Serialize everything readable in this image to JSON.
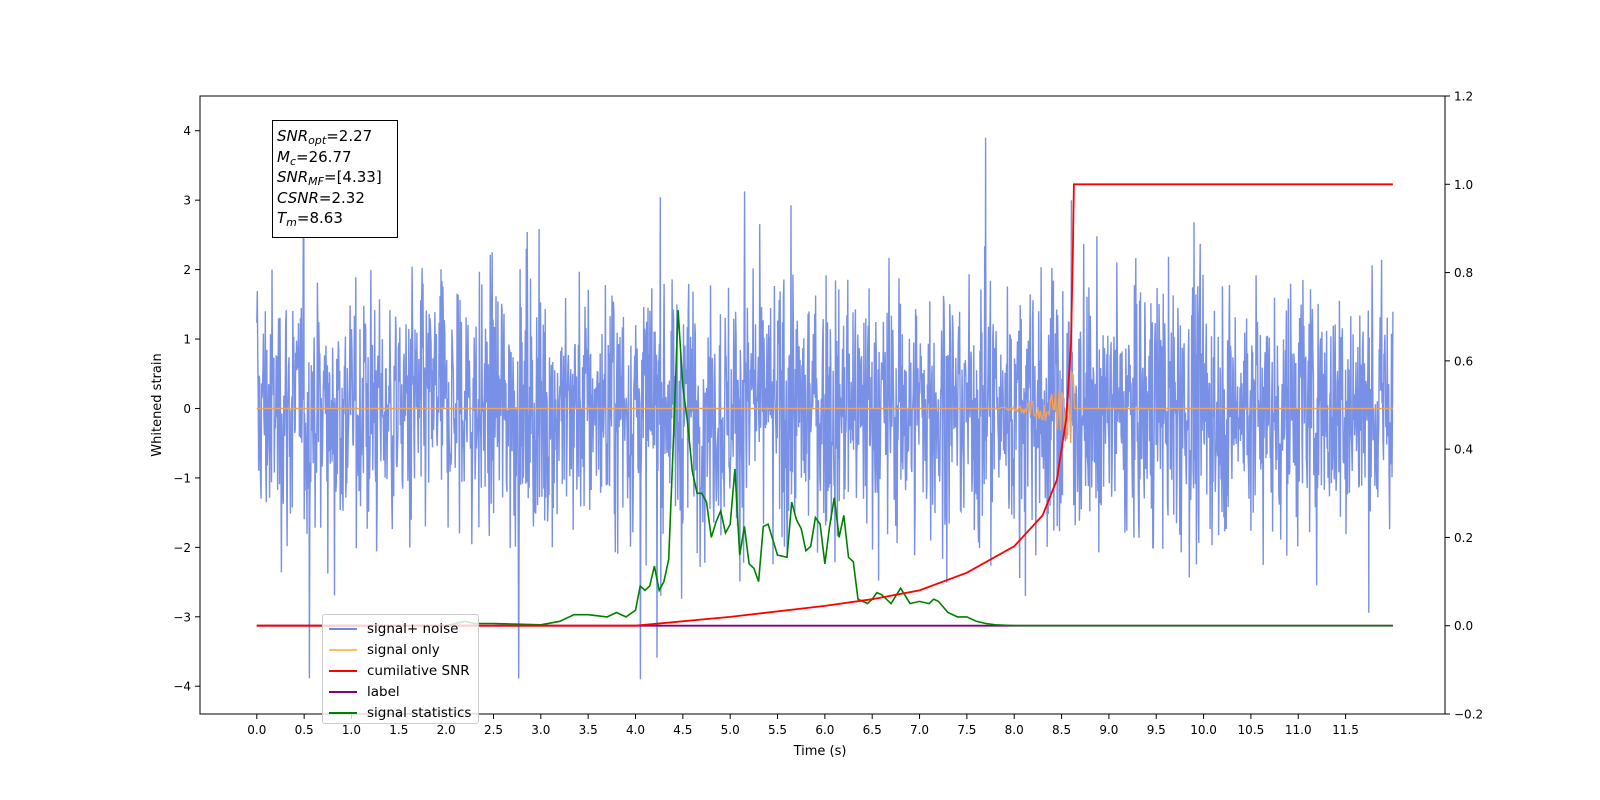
{
  "chart_data": {
    "type": "line",
    "title": "",
    "xlabel": "Time (s)",
    "ylabel": "Whitened strain",
    "xlim": [
      -0.6,
      12.55
    ],
    "ylim": [
      -4.4,
      4.5
    ],
    "y2lim": [
      -0.2,
      1.2
    ],
    "x_ticks": [
      "0.0",
      "0.5",
      "1.0",
      "1.5",
      "2.0",
      "2.5",
      "3.0",
      "3.5",
      "4.0",
      "4.5",
      "5.0",
      "5.5",
      "6.0",
      "6.5",
      "7.0",
      "7.5",
      "8.0",
      "8.5",
      "9.0",
      "9.5",
      "10.0",
      "10.5",
      "11.0",
      "11.5"
    ],
    "y_ticks": [
      "4",
      "3",
      "2",
      "1",
      "0",
      "−1",
      "−2",
      "−3",
      "−4"
    ],
    "y2_ticks": [
      "1.2",
      "1.0",
      "0.8",
      "0.6",
      "0.4",
      "0.2",
      "0.0",
      "−0.2"
    ],
    "legend_position": "lower-left",
    "colors": {
      "signal_noise": "#6d87e3",
      "signal_only": "#f0a35a",
      "cumulative_snr": "#ff0000",
      "label": "#800080",
      "signal_statistics": "#008000"
    },
    "series": [
      {
        "name": "signal+ noise",
        "axis": "left",
        "description_values": "whitened noisy strain, roughly within -3.9 to 3.9 over 0 to 12 s",
        "x_range": [
          0.0,
          12.0
        ],
        "approx_range": [
          -3.9,
          3.9
        ]
      },
      {
        "name": "signal only",
        "axis": "left",
        "chirp_end_time": 8.63,
        "peak_amplitude": 0.55,
        "x_range": [
          0.0,
          12.0
        ]
      },
      {
        "name": "cumilative SNR",
        "axis": "right",
        "x": [
          0.0,
          4.0,
          5.0,
          6.0,
          6.5,
          7.0,
          7.5,
          8.0,
          8.3,
          8.45,
          8.55,
          8.6,
          8.62,
          8.63,
          12.0
        ],
        "y": [
          0.0,
          0.0,
          0.02,
          0.045,
          0.06,
          0.08,
          0.12,
          0.18,
          0.25,
          0.33,
          0.47,
          0.64,
          0.85,
          1.0,
          1.0
        ]
      },
      {
        "name": "label",
        "axis": "right",
        "x": [
          0.0,
          12.0
        ],
        "y": [
          0.0,
          0.0
        ]
      },
      {
        "name": "signal statistics",
        "axis": "right",
        "x": [
          0.0,
          2.0,
          2.2,
          2.3,
          2.5,
          3.0,
          3.2,
          3.35,
          3.5,
          3.7,
          3.8,
          3.9,
          4.0,
          4.05,
          4.1,
          4.15,
          4.2,
          4.25,
          4.3,
          4.35,
          4.4,
          4.45,
          4.5,
          4.55,
          4.6,
          4.65,
          4.7,
          4.75,
          4.8,
          4.85,
          4.9,
          4.95,
          5.0,
          5.05,
          5.1,
          5.15,
          5.2,
          5.25,
          5.3,
          5.35,
          5.4,
          5.5,
          5.6,
          5.65,
          5.7,
          5.75,
          5.8,
          5.85,
          5.9,
          5.95,
          6.0,
          6.05,
          6.1,
          6.15,
          6.2,
          6.25,
          6.3,
          6.35,
          6.4,
          6.45,
          6.5,
          6.55,
          6.6,
          6.7,
          6.8,
          6.9,
          7.0,
          7.1,
          7.15,
          7.2,
          7.3,
          7.4,
          7.5,
          7.6,
          7.7,
          7.8,
          8.0,
          8.3,
          12.0
        ],
        "y": [
          0.0,
          0.0,
          0.01,
          0.005,
          0.005,
          0.002,
          0.01,
          0.025,
          0.025,
          0.02,
          0.03,
          0.02,
          0.035,
          0.09,
          0.08,
          0.09,
          0.135,
          0.08,
          0.1,
          0.15,
          0.42,
          0.715,
          0.54,
          0.46,
          0.35,
          0.3,
          0.3,
          0.28,
          0.2,
          0.235,
          0.26,
          0.21,
          0.23,
          0.355,
          0.16,
          0.225,
          0.14,
          0.13,
          0.1,
          0.225,
          0.23,
          0.16,
          0.155,
          0.28,
          0.24,
          0.22,
          0.17,
          0.18,
          0.245,
          0.23,
          0.14,
          0.225,
          0.29,
          0.2,
          0.25,
          0.155,
          0.145,
          0.06,
          0.055,
          0.05,
          0.06,
          0.075,
          0.07,
          0.05,
          0.085,
          0.05,
          0.055,
          0.05,
          0.06,
          0.055,
          0.03,
          0.02,
          0.02,
          0.01,
          0.005,
          0.002,
          0.0,
          0.0,
          0.0
        ]
      }
    ]
  },
  "stats_box": {
    "snr_opt_label": "SNR",
    "snr_opt_sub": "opt",
    "snr_opt_value": "=2.27",
    "mc_label": "M",
    "mc_sub": "c",
    "mc_value": "=26.77",
    "snr_mf_label": "SNR",
    "snr_mf_sub": "MF",
    "snr_mf_value": "=[4.33]",
    "csnr_label": "CSNR",
    "csnr_value": "=2.32",
    "tm_label": "T",
    "tm_sub": "m",
    "tm_value": "=8.63"
  },
  "legend": {
    "entries": [
      {
        "label": "signal+ noise",
        "color": "#6d87e3"
      },
      {
        "label": "signal only",
        "color": "#ffbf5a"
      },
      {
        "label": "cumilative SNR",
        "color": "#ff0000"
      },
      {
        "label": "label",
        "color": "#800080"
      },
      {
        "label": "signal statistics",
        "color": "#008000"
      }
    ]
  }
}
